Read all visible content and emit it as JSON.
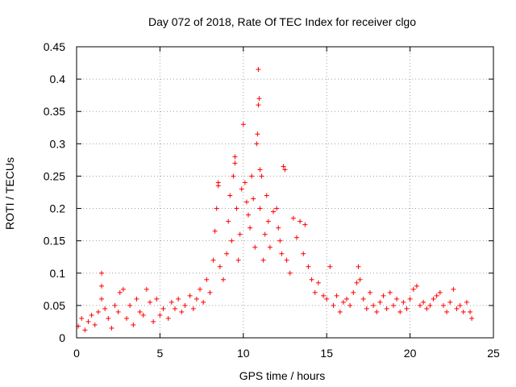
{
  "chart_data": {
    "type": "scatter",
    "title": "Day 072 of 2018, Rate Of TEC Index for receiver clgo",
    "xlabel": "GPS time / hours",
    "ylabel": "ROTI / TECUs",
    "xlim": [
      0,
      25
    ],
    "ylim": [
      0,
      0.45
    ],
    "xticks": [
      0,
      5,
      10,
      15,
      20,
      25
    ],
    "yticks": [
      0,
      0.05,
      0.1,
      0.15,
      0.2,
      0.25,
      0.3,
      0.35,
      0.4,
      0.45
    ],
    "xtick_labels": [
      "0",
      "5",
      "10",
      "15",
      "20",
      "25"
    ],
    "ytick_labels": [
      "0",
      "0.05",
      "0.1",
      "0.15",
      "0.2",
      "0.25",
      "0.3",
      "0.35",
      "0.4",
      "0.45"
    ],
    "grid": true,
    "marker": "+",
    "series": [
      {
        "name": "ROTI",
        "color": "#ff0000",
        "points": [
          [
            0.1,
            0.018
          ],
          [
            0.3,
            0.03
          ],
          [
            0.5,
            0.012
          ],
          [
            0.7,
            0.025
          ],
          [
            0.9,
            0.035
          ],
          [
            1.1,
            0.02
          ],
          [
            1.3,
            0.04
          ],
          [
            1.5,
            0.06
          ],
          [
            1.5,
            0.1
          ],
          [
            1.5,
            0.08
          ],
          [
            1.7,
            0.045
          ],
          [
            1.9,
            0.03
          ],
          [
            2.1,
            0.015
          ],
          [
            2.3,
            0.05
          ],
          [
            2.5,
            0.04
          ],
          [
            2.6,
            0.07
          ],
          [
            2.8,
            0.075
          ],
          [
            3.0,
            0.03
          ],
          [
            3.2,
            0.05
          ],
          [
            3.4,
            0.02
          ],
          [
            3.6,
            0.06
          ],
          [
            3.8,
            0.04
          ],
          [
            4.0,
            0.035
          ],
          [
            4.2,
            0.075
          ],
          [
            4.4,
            0.055
          ],
          [
            4.6,
            0.025
          ],
          [
            4.8,
            0.06
          ],
          [
            5.0,
            0.035
          ],
          [
            5.2,
            0.045
          ],
          [
            5.5,
            0.03
          ],
          [
            5.7,
            0.055
          ],
          [
            5.9,
            0.045
          ],
          [
            6.1,
            0.06
          ],
          [
            6.3,
            0.04
          ],
          [
            6.5,
            0.05
          ],
          [
            6.8,
            0.065
          ],
          [
            7.0,
            0.045
          ],
          [
            7.2,
            0.06
          ],
          [
            7.4,
            0.075
          ],
          [
            7.6,
            0.055
          ],
          [
            7.8,
            0.09
          ],
          [
            8.0,
            0.07
          ],
          [
            8.2,
            0.12
          ],
          [
            8.3,
            0.165
          ],
          [
            8.4,
            0.2
          ],
          [
            8.5,
            0.235
          ],
          [
            8.5,
            0.24
          ],
          [
            8.6,
            0.11
          ],
          [
            8.8,
            0.09
          ],
          [
            9.0,
            0.13
          ],
          [
            9.1,
            0.18
          ],
          [
            9.2,
            0.22
          ],
          [
            9.3,
            0.15
          ],
          [
            9.4,
            0.25
          ],
          [
            9.5,
            0.27
          ],
          [
            9.5,
            0.28
          ],
          [
            9.6,
            0.2
          ],
          [
            9.7,
            0.12
          ],
          [
            9.8,
            0.16
          ],
          [
            9.9,
            0.23
          ],
          [
            10.0,
            0.33
          ],
          [
            10.1,
            0.24
          ],
          [
            10.2,
            0.21
          ],
          [
            10.3,
            0.19
          ],
          [
            10.4,
            0.17
          ],
          [
            10.5,
            0.25
          ],
          [
            10.6,
            0.215
          ],
          [
            10.7,
            0.14
          ],
          [
            10.8,
            0.3
          ],
          [
            10.85,
            0.315
          ],
          [
            10.9,
            0.36
          ],
          [
            10.95,
            0.37
          ],
          [
            10.9,
            0.415
          ],
          [
            11.0,
            0.26
          ],
          [
            11.0,
            0.2
          ],
          [
            11.1,
            0.25
          ],
          [
            11.2,
            0.12
          ],
          [
            11.3,
            0.16
          ],
          [
            11.4,
            0.22
          ],
          [
            11.5,
            0.18
          ],
          [
            11.6,
            0.14
          ],
          [
            11.8,
            0.195
          ],
          [
            12.0,
            0.2
          ],
          [
            12.1,
            0.17
          ],
          [
            12.2,
            0.15
          ],
          [
            12.3,
            0.13
          ],
          [
            12.4,
            0.265
          ],
          [
            12.5,
            0.26
          ],
          [
            12.6,
            0.12
          ],
          [
            12.8,
            0.1
          ],
          [
            13.0,
            0.185
          ],
          [
            13.2,
            0.155
          ],
          [
            13.4,
            0.18
          ],
          [
            13.6,
            0.13
          ],
          [
            13.7,
            0.175
          ],
          [
            13.9,
            0.11
          ],
          [
            14.1,
            0.09
          ],
          [
            14.3,
            0.07
          ],
          [
            14.5,
            0.085
          ],
          [
            14.8,
            0.065
          ],
          [
            15.0,
            0.06
          ],
          [
            15.2,
            0.11
          ],
          [
            15.4,
            0.05
          ],
          [
            15.6,
            0.065
          ],
          [
            15.8,
            0.04
          ],
          [
            16.0,
            0.055
          ],
          [
            16.2,
            0.06
          ],
          [
            16.4,
            0.05
          ],
          [
            16.6,
            0.07
          ],
          [
            16.8,
            0.085
          ],
          [
            16.9,
            0.11
          ],
          [
            17.0,
            0.09
          ],
          [
            17.2,
            0.06
          ],
          [
            17.4,
            0.045
          ],
          [
            17.6,
            0.07
          ],
          [
            17.8,
            0.05
          ],
          [
            18.0,
            0.04
          ],
          [
            18.2,
            0.055
          ],
          [
            18.4,
            0.065
          ],
          [
            18.6,
            0.045
          ],
          [
            18.8,
            0.07
          ],
          [
            19.0,
            0.05
          ],
          [
            19.2,
            0.06
          ],
          [
            19.4,
            0.04
          ],
          [
            19.6,
            0.055
          ],
          [
            19.8,
            0.045
          ],
          [
            20.0,
            0.06
          ],
          [
            20.2,
            0.075
          ],
          [
            20.4,
            0.08
          ],
          [
            20.6,
            0.05
          ],
          [
            20.8,
            0.055
          ],
          [
            21.0,
            0.045
          ],
          [
            21.2,
            0.05
          ],
          [
            21.4,
            0.06
          ],
          [
            21.6,
            0.065
          ],
          [
            21.8,
            0.07
          ],
          [
            22.0,
            0.05
          ],
          [
            22.2,
            0.04
          ],
          [
            22.4,
            0.055
          ],
          [
            22.6,
            0.075
          ],
          [
            22.8,
            0.045
          ],
          [
            23.0,
            0.05
          ],
          [
            23.2,
            0.04
          ],
          [
            23.4,
            0.055
          ],
          [
            23.6,
            0.04
          ],
          [
            23.7,
            0.03
          ]
        ]
      }
    ]
  }
}
